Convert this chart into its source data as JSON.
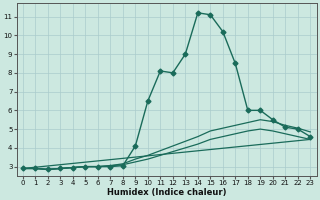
{
  "xlabel": "Humidex (Indice chaleur)",
  "bg_color": "#cce8e0",
  "grid_color": "#aacccc",
  "line_color": "#1a6b5a",
  "xlim": [
    -0.5,
    23.5
  ],
  "ylim": [
    2.5,
    11.7
  ],
  "yticks": [
    3,
    4,
    5,
    6,
    7,
    8,
    9,
    10,
    11
  ],
  "xticks": [
    0,
    1,
    2,
    3,
    4,
    5,
    6,
    7,
    8,
    9,
    10,
    11,
    12,
    13,
    14,
    15,
    16,
    17,
    18,
    19,
    20,
    21,
    22,
    23
  ],
  "series": [
    {
      "x": [
        0,
        1,
        2,
        3,
        4,
        5,
        6,
        7,
        8,
        9,
        10,
        11,
        12,
        13,
        14,
        15,
        16,
        17,
        18,
        19,
        20,
        21,
        22,
        23
      ],
      "y": [
        2.9,
        2.9,
        2.85,
        2.9,
        2.95,
        3.0,
        3.0,
        3.0,
        3.05,
        4.1,
        6.5,
        8.1,
        8.0,
        9.0,
        11.2,
        11.1,
        10.2,
        8.5,
        6.0,
        6.0,
        5.5,
        5.1,
        5.0,
        4.6
      ],
      "marker": "D",
      "markersize": 2.5,
      "linewidth": 1.0
    },
    {
      "x": [
        0,
        1,
        2,
        3,
        4,
        5,
        6,
        7,
        8,
        9,
        10,
        11,
        12,
        13,
        14,
        15,
        16,
        17,
        18,
        19,
        20,
        21,
        22,
        23
      ],
      "y": [
        2.9,
        2.9,
        2.85,
        2.9,
        2.95,
        3.0,
        3.0,
        3.05,
        3.15,
        3.4,
        3.6,
        3.85,
        4.1,
        4.35,
        4.6,
        4.9,
        5.05,
        5.2,
        5.35,
        5.5,
        5.4,
        5.2,
        5.05,
        4.85
      ],
      "marker": null,
      "linewidth": 0.9
    },
    {
      "x": [
        0,
        1,
        2,
        3,
        4,
        5,
        6,
        7,
        8,
        9,
        10,
        11,
        12,
        13,
        14,
        15,
        16,
        17,
        18,
        19,
        20,
        21,
        22,
        23
      ],
      "y": [
        2.9,
        2.9,
        2.85,
        2.9,
        2.95,
        3.0,
        3.0,
        3.05,
        3.1,
        3.25,
        3.4,
        3.6,
        3.8,
        4.0,
        4.2,
        4.45,
        4.6,
        4.75,
        4.9,
        5.0,
        4.9,
        4.75,
        4.6,
        4.45
      ],
      "marker": null,
      "linewidth": 0.9
    },
    {
      "x": [
        0,
        23
      ],
      "y": [
        2.9,
        4.45
      ],
      "marker": null,
      "linewidth": 0.9
    }
  ]
}
